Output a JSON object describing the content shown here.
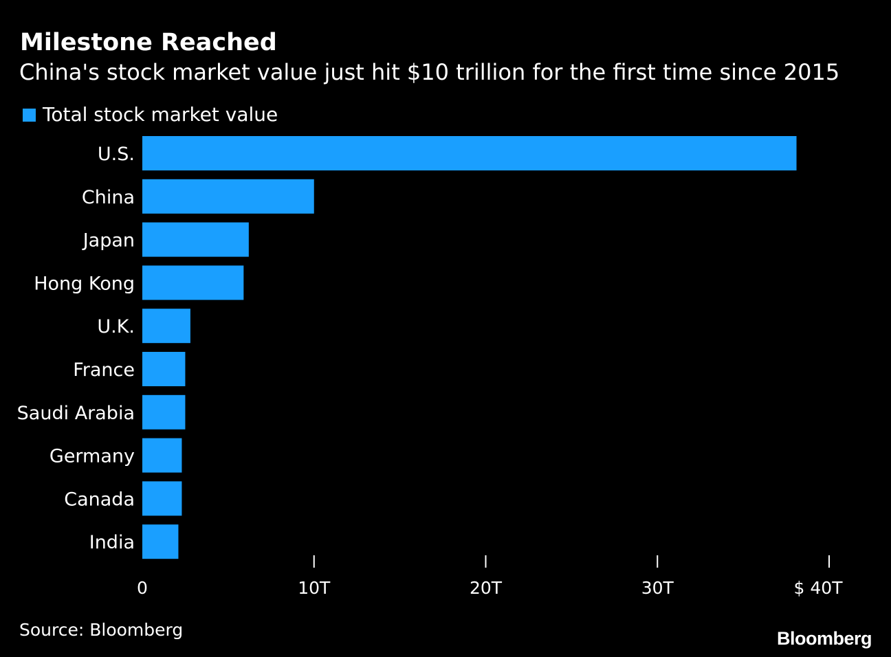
{
  "chart_data": {
    "type": "bar",
    "orientation": "horizontal",
    "title": "Milestone Reached",
    "subtitle": "China's stock market value just hit $10 trillion for the first time since 2015",
    "legend": [
      "Total stock market value"
    ],
    "categories": [
      "U.S.",
      "China",
      "Japan",
      "Hong Kong",
      "U.K.",
      "France",
      "Saudi Arabia",
      "Germany",
      "Canada",
      "India"
    ],
    "series": [
      {
        "name": "Total stock market value",
        "values": [
          38.1,
          10.0,
          6.2,
          5.9,
          2.8,
          2.5,
          2.5,
          2.3,
          2.3,
          2.1
        ]
      }
    ],
    "xlim": [
      0,
      40
    ],
    "xticks": [
      0,
      10,
      20,
      30,
      40
    ],
    "xtick_labels": [
      "0",
      "10T",
      "20T",
      "30T",
      "$ 40T"
    ],
    "xlabel": "",
    "ylabel": "",
    "grid": false,
    "colors": {
      "bar": "#1a9fff",
      "background": "#000000",
      "text": "#ffffff",
      "axis": "#ffffff"
    }
  },
  "footer": {
    "source": "Source: Bloomberg",
    "brand": "Bloomberg"
  }
}
